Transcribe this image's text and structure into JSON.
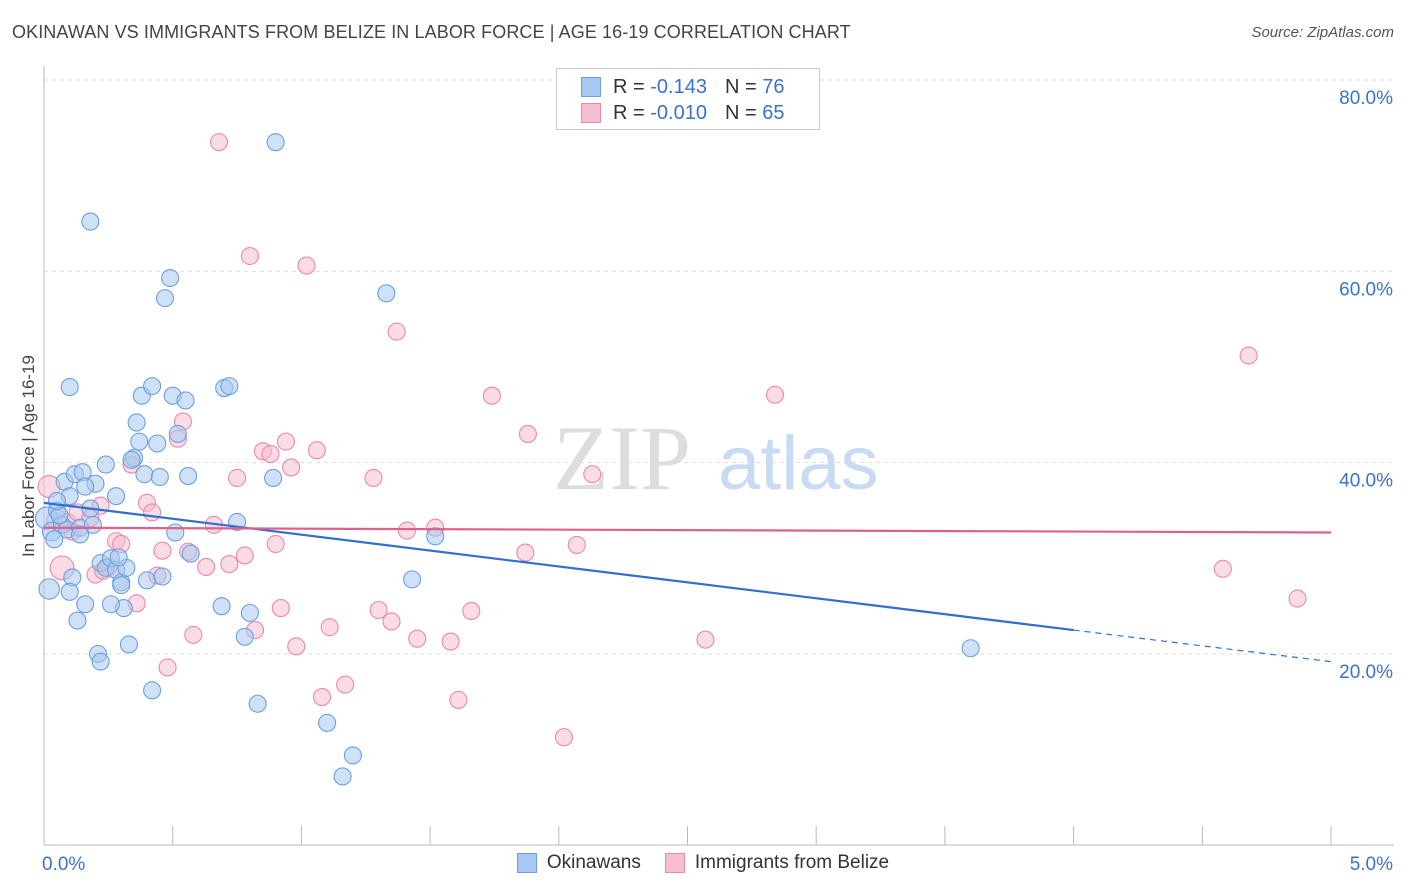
{
  "title": "OKINAWAN VS IMMIGRANTS FROM BELIZE IN LABOR FORCE | AGE 16-19 CORRELATION CHART",
  "source": "Source: ZipAtlas.com",
  "watermark": {
    "zip": "ZIP",
    "atlas": "atlas"
  },
  "legend": {
    "series1": {
      "r_label": "R =",
      "r_value": "-0.143",
      "n_label": "N =",
      "n_value": "76"
    },
    "series2": {
      "r_label": "R =",
      "r_value": "-0.010",
      "n_label": "N =",
      "n_value": "65"
    }
  },
  "bottom_legend": {
    "series1": "Okinawans",
    "series2": "Immigrants from Belize"
  },
  "colors": {
    "blue_fill": "#a8c8f0",
    "blue_stroke": "#6d9fde",
    "blue_line": "#2f6fcf",
    "pink_fill": "#f7bdd0",
    "pink_stroke": "#e98aaa",
    "pink_line": "#e0608a",
    "axis_text": "#3a73c7",
    "grid": "#dddddd"
  },
  "chart_data": {
    "type": "scatter",
    "title": "OKINAWAN VS IMMIGRANTS FROM BELIZE IN LABOR FORCE | AGE 16-19 CORRELATION CHART",
    "xlabel": "",
    "ylabel": "In Labor Force | Age 16-19",
    "xlim": [
      0,
      5
    ],
    "ylim": [
      0,
      82
    ],
    "x_tick_labels": {
      "left": "0.0%",
      "right": "5.0%"
    },
    "y_ticks": [
      {
        "value": 20,
        "label": "20.0%"
      },
      {
        "value": 40,
        "label": "40.0%"
      },
      {
        "value": 60,
        "label": "60.0%"
      },
      {
        "value": 80,
        "label": "80.0%"
      }
    ],
    "series": [
      {
        "name": "Okinawans",
        "color": "blue",
        "r": -0.143,
        "n": 76,
        "trend": {
          "x1": 0.0,
          "y1": 35.8,
          "x2": 4.0,
          "y2": 22.5,
          "dash_to_x": 5.0,
          "dash_to_y": 19.2
        },
        "points": [
          {
            "x": 0.01,
            "y": 34.2,
            "s": 1.3
          },
          {
            "x": 0.03,
            "y": 32.8,
            "s": 1.1
          },
          {
            "x": 0.05,
            "y": 35.0
          },
          {
            "x": 0.02,
            "y": 26.8,
            "s": 1.2
          },
          {
            "x": 0.07,
            "y": 33.5
          },
          {
            "x": 0.09,
            "y": 33.0
          },
          {
            "x": 0.04,
            "y": 32.0
          },
          {
            "x": 0.06,
            "y": 34.5
          },
          {
            "x": 0.08,
            "y": 38.0
          },
          {
            "x": 0.1,
            "y": 36.5
          },
          {
            "x": 0.12,
            "y": 38.8
          },
          {
            "x": 0.14,
            "y": 33.2
          },
          {
            "x": 0.11,
            "y": 28.0
          },
          {
            "x": 0.1,
            "y": 26.5
          },
          {
            "x": 0.13,
            "y": 23.5
          },
          {
            "x": 0.16,
            "y": 25.2
          },
          {
            "x": 0.18,
            "y": 35.2
          },
          {
            "x": 0.2,
            "y": 37.8
          },
          {
            "x": 0.22,
            "y": 29.5
          },
          {
            "x": 0.24,
            "y": 29.0
          },
          {
            "x": 0.26,
            "y": 30.0
          },
          {
            "x": 0.28,
            "y": 28.8
          },
          {
            "x": 0.3,
            "y": 27.5
          },
          {
            "x": 0.21,
            "y": 20.0
          },
          {
            "x": 0.22,
            "y": 19.2
          },
          {
            "x": 0.3,
            "y": 27.2
          },
          {
            "x": 0.32,
            "y": 29.0
          },
          {
            "x": 0.31,
            "y": 24.8
          },
          {
            "x": 0.33,
            "y": 21.0
          },
          {
            "x": 0.35,
            "y": 40.5
          },
          {
            "x": 0.34,
            "y": 40.3
          },
          {
            "x": 0.37,
            "y": 42.2
          },
          {
            "x": 0.39,
            "y": 38.8
          },
          {
            "x": 0.36,
            "y": 44.2
          },
          {
            "x": 0.38,
            "y": 47.0
          },
          {
            "x": 0.4,
            "y": 27.7
          },
          {
            "x": 0.42,
            "y": 48.0
          },
          {
            "x": 0.44,
            "y": 42.0
          },
          {
            "x": 0.45,
            "y": 38.5
          },
          {
            "x": 0.47,
            "y": 57.2
          },
          {
            "x": 0.49,
            "y": 59.3
          },
          {
            "x": 0.5,
            "y": 47.0
          },
          {
            "x": 0.52,
            "y": 43.0
          },
          {
            "x": 0.55,
            "y": 46.5
          },
          {
            "x": 0.56,
            "y": 38.6
          },
          {
            "x": 0.57,
            "y": 30.5
          },
          {
            "x": 0.46,
            "y": 28.1
          },
          {
            "x": 0.51,
            "y": 32.7
          },
          {
            "x": 0.42,
            "y": 16.2
          },
          {
            "x": 0.7,
            "y": 47.8
          },
          {
            "x": 0.72,
            "y": 48.0
          },
          {
            "x": 0.75,
            "y": 33.8
          },
          {
            "x": 0.69,
            "y": 25.0
          },
          {
            "x": 0.8,
            "y": 24.3
          },
          {
            "x": 0.78,
            "y": 21.8
          },
          {
            "x": 0.83,
            "y": 14.8
          },
          {
            "x": 0.89,
            "y": 38.4
          },
          {
            "x": 0.9,
            "y": 73.5
          },
          {
            "x": 1.1,
            "y": 12.8
          },
          {
            "x": 1.16,
            "y": 7.2
          },
          {
            "x": 1.2,
            "y": 9.4
          },
          {
            "x": 1.33,
            "y": 57.7
          },
          {
            "x": 1.43,
            "y": 27.8
          },
          {
            "x": 1.52,
            "y": 32.3
          },
          {
            "x": 0.18,
            "y": 65.2
          },
          {
            "x": 0.1,
            "y": 47.9
          },
          {
            "x": 0.28,
            "y": 36.5
          },
          {
            "x": 0.15,
            "y": 39.0
          },
          {
            "x": 0.24,
            "y": 39.8
          },
          {
            "x": 0.19,
            "y": 33.5
          },
          {
            "x": 0.05,
            "y": 36.0
          },
          {
            "x": 0.14,
            "y": 32.5
          },
          {
            "x": 0.16,
            "y": 37.5
          },
          {
            "x": 3.6,
            "y": 20.6
          },
          {
            "x": 0.26,
            "y": 25.2
          },
          {
            "x": 0.29,
            "y": 30.1
          }
        ]
      },
      {
        "name": "Immigrants from Belize",
        "color": "pink",
        "r": -0.01,
        "n": 65,
        "trend": {
          "x1": 0.0,
          "y1": 33.2,
          "x2": 5.0,
          "y2": 32.7
        },
        "points": [
          {
            "x": 0.02,
            "y": 37.5,
            "s": 1.3
          },
          {
            "x": 0.05,
            "y": 34.0,
            "s": 1.2
          },
          {
            "x": 0.07,
            "y": 29.0,
            "s": 1.4
          },
          {
            "x": 0.09,
            "y": 33.8
          },
          {
            "x": 0.11,
            "y": 32.8
          },
          {
            "x": 0.13,
            "y": 34.8
          },
          {
            "x": 0.18,
            "y": 34.2
          },
          {
            "x": 0.2,
            "y": 28.3
          },
          {
            "x": 0.22,
            "y": 35.5
          },
          {
            "x": 0.25,
            "y": 29.1
          },
          {
            "x": 0.28,
            "y": 31.8
          },
          {
            "x": 0.3,
            "y": 31.5
          },
          {
            "x": 0.34,
            "y": 39.8
          },
          {
            "x": 0.36,
            "y": 25.3
          },
          {
            "x": 0.4,
            "y": 35.8
          },
          {
            "x": 0.42,
            "y": 34.8
          },
          {
            "x": 0.44,
            "y": 28.2
          },
          {
            "x": 0.46,
            "y": 30.8
          },
          {
            "x": 0.48,
            "y": 18.6
          },
          {
            "x": 0.52,
            "y": 42.5
          },
          {
            "x": 0.54,
            "y": 44.3
          },
          {
            "x": 0.56,
            "y": 30.7
          },
          {
            "x": 0.58,
            "y": 22.0
          },
          {
            "x": 0.63,
            "y": 29.1
          },
          {
            "x": 0.66,
            "y": 33.5
          },
          {
            "x": 0.68,
            "y": 73.5
          },
          {
            "x": 0.72,
            "y": 29.4
          },
          {
            "x": 0.75,
            "y": 38.4
          },
          {
            "x": 0.78,
            "y": 30.3
          },
          {
            "x": 0.8,
            "y": 61.6
          },
          {
            "x": 0.82,
            "y": 22.5
          },
          {
            "x": 0.85,
            "y": 41.2
          },
          {
            "x": 0.88,
            "y": 40.9
          },
          {
            "x": 0.9,
            "y": 31.5
          },
          {
            "x": 0.92,
            "y": 24.8
          },
          {
            "x": 0.94,
            "y": 42.2
          },
          {
            "x": 0.96,
            "y": 39.5
          },
          {
            "x": 0.98,
            "y": 20.8
          },
          {
            "x": 1.02,
            "y": 60.6
          },
          {
            "x": 1.06,
            "y": 41.3
          },
          {
            "x": 1.08,
            "y": 15.5
          },
          {
            "x": 1.11,
            "y": 22.8
          },
          {
            "x": 1.17,
            "y": 16.8
          },
          {
            "x": 1.28,
            "y": 38.4
          },
          {
            "x": 1.3,
            "y": 24.6
          },
          {
            "x": 1.35,
            "y": 23.4
          },
          {
            "x": 1.37,
            "y": 53.7
          },
          {
            "x": 1.41,
            "y": 32.9
          },
          {
            "x": 1.45,
            "y": 21.6
          },
          {
            "x": 1.52,
            "y": 33.2
          },
          {
            "x": 1.58,
            "y": 21.3
          },
          {
            "x": 1.61,
            "y": 15.2
          },
          {
            "x": 1.66,
            "y": 24.5
          },
          {
            "x": 1.74,
            "y": 47.0
          },
          {
            "x": 1.87,
            "y": 30.6
          },
          {
            "x": 1.88,
            "y": 43.0
          },
          {
            "x": 2.02,
            "y": 11.3
          },
          {
            "x": 2.07,
            "y": 31.4
          },
          {
            "x": 2.13,
            "y": 38.8
          },
          {
            "x": 2.57,
            "y": 21.5
          },
          {
            "x": 2.84,
            "y": 47.1
          },
          {
            "x": 4.58,
            "y": 28.9
          },
          {
            "x": 4.68,
            "y": 51.2
          },
          {
            "x": 4.87,
            "y": 25.8
          },
          {
            "x": 0.23,
            "y": 28.7
          }
        ]
      }
    ]
  }
}
